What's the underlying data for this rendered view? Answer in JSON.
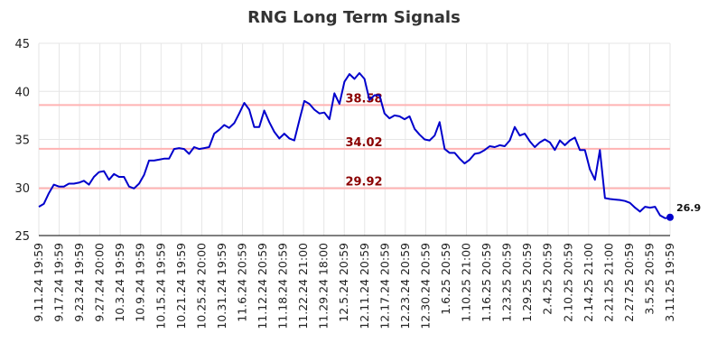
{
  "chart_data": {
    "type": "line",
    "title": "RNG Long Term Signals",
    "xlabel": "",
    "ylabel": "",
    "ylim": [
      25,
      45
    ],
    "yticks": [
      25,
      30,
      35,
      40,
      45
    ],
    "grid": true,
    "x_tick_labels": [
      "9.11.24 19:59",
      "9.17.24 19:59",
      "9.23.24 19:59",
      "9.27.24 20:00",
      "10.3.24 19:59",
      "10.9.24 19:59",
      "10.15.24 19:59",
      "10.21.24 19:59",
      "10.25.24 20:00",
      "10.31.24 19:59",
      "11.6.24 20:59",
      "11.12.24 20:59",
      "11.18.24 20:59",
      "11.22.24 21:00",
      "11.29.24 18:00",
      "12.5.24 20:59",
      "12.11.24 20:59",
      "12.17.24 20:59",
      "12.23.24 20:59",
      "12.30.24 20:59",
      "1.6.25 20:59",
      "1.10.25 21:00",
      "1.16.25 20:59",
      "1.23.25 20:59",
      "1.29.25 20:59",
      "2.4.25 20:59",
      "2.10.25 20:59",
      "2.14.25 21:00",
      "2.21.25 21:00",
      "2.27.25 20:59",
      "3.5.25 20:59",
      "3.11.25 19:59"
    ],
    "levels": [
      {
        "label": "38.58",
        "value": 38.58,
        "color": "#8b0000"
      },
      {
        "label": "34.02",
        "value": 34.02,
        "color": "#8b0000"
      },
      {
        "label": "29.92",
        "value": 29.92,
        "color": "#8b0000"
      }
    ],
    "line_color": "#0000cc",
    "level_line_color": "#ffb3b3",
    "last_value_label": "26.9",
    "series": [
      {
        "values": [
          28.0,
          28.3,
          29.4,
          30.3,
          30.1,
          30.1,
          30.4,
          30.4,
          30.5,
          30.7,
          30.3,
          31.1,
          31.6,
          31.7,
          30.8,
          31.4,
          31.1,
          31.1,
          30.1,
          29.9,
          30.4,
          31.3,
          32.8,
          32.8,
          32.9,
          33.0,
          33.0,
          34.0,
          34.1,
          34.0,
          33.5,
          34.2,
          34.0,
          34.1,
          34.2,
          35.6,
          36.0,
          36.5,
          36.2,
          36.7,
          37.7,
          38.8,
          38.1,
          36.3,
          36.3,
          38.0,
          36.8,
          35.8,
          35.1,
          35.6,
          35.1,
          34.9,
          37.0,
          39.0,
          38.7,
          38.1,
          37.7,
          37.8,
          37.1,
          39.8,
          38.7,
          41.0,
          41.8,
          41.3,
          41.9,
          41.3,
          39.1,
          39.6,
          39.6,
          37.7,
          37.2,
          37.5,
          37.4,
          37.1,
          37.4,
          36.1,
          35.5,
          35.0,
          34.9,
          35.4,
          36.8,
          34.0,
          33.6,
          33.6,
          33.0,
          32.5,
          32.9,
          33.5,
          33.6,
          33.9,
          34.3,
          34.2,
          34.4,
          34.3,
          34.9,
          36.3,
          35.4,
          35.6,
          34.8,
          34.2,
          34.7,
          35.0,
          34.7,
          33.9,
          34.9,
          34.4,
          34.9,
          35.2,
          33.9,
          33.9,
          31.9,
          30.8,
          33.9,
          28.9,
          28.8,
          28.75,
          28.7,
          28.6,
          28.4,
          27.9,
          27.5,
          28.0,
          27.9,
          28.0,
          27.1,
          26.8,
          26.9
        ]
      }
    ]
  }
}
